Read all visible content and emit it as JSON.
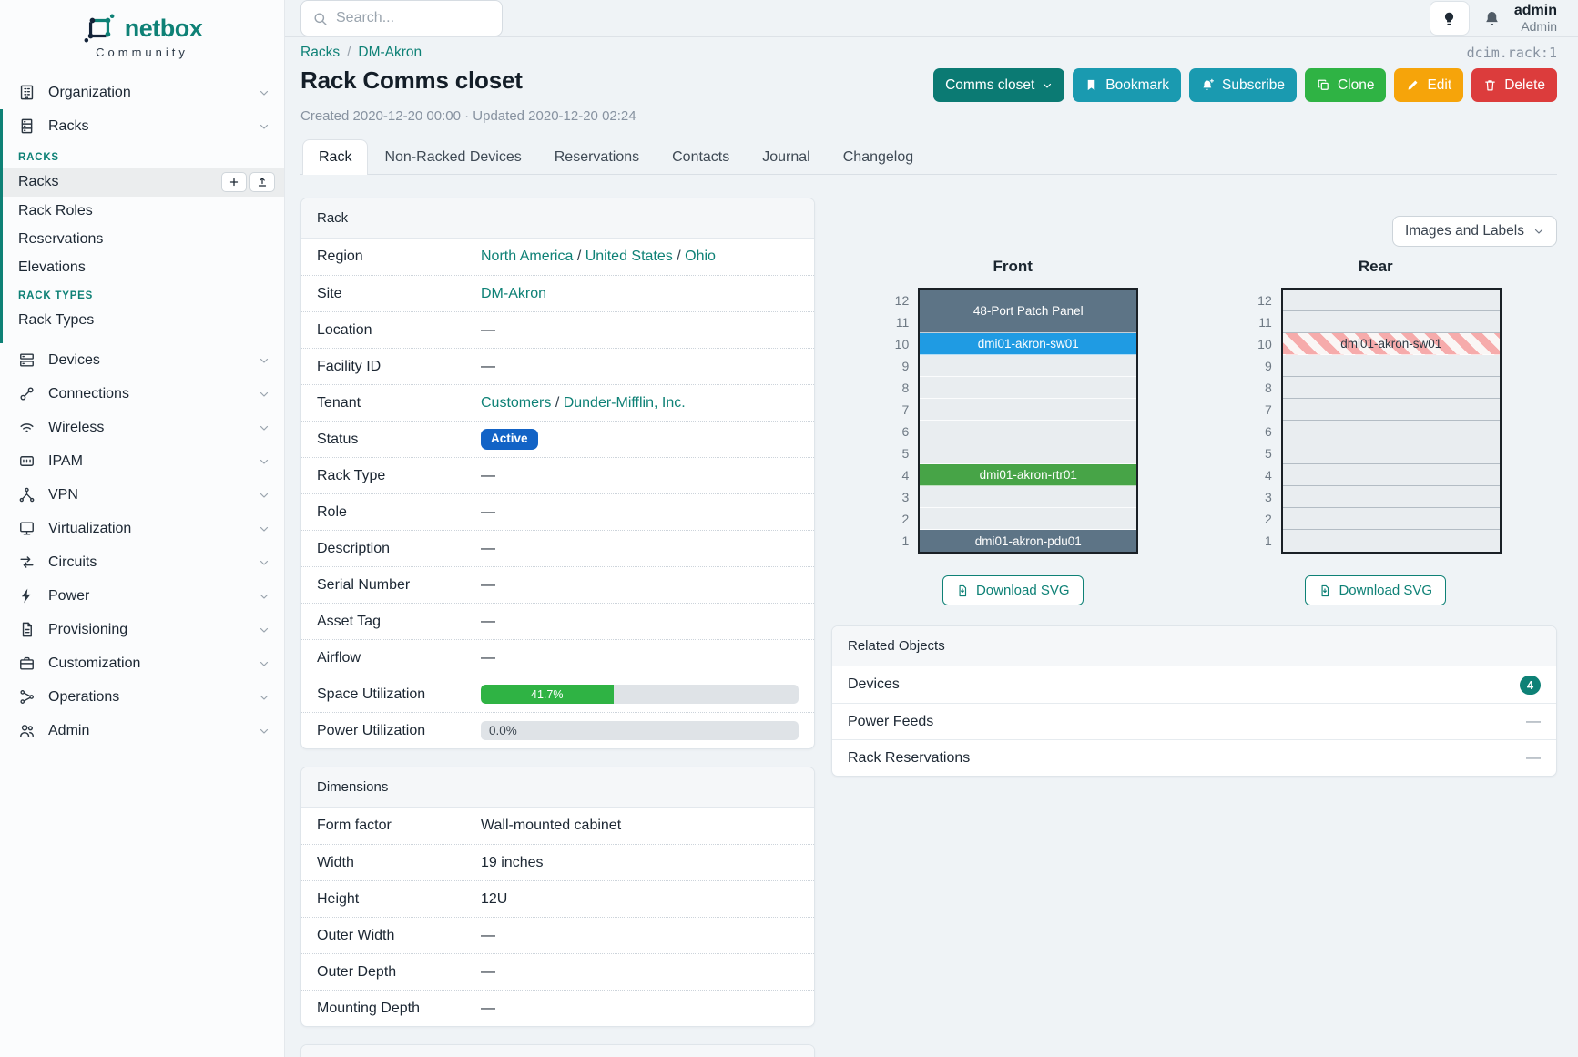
{
  "brand": {
    "name": "netbox",
    "subtitle": "Community"
  },
  "topbar": {
    "search_placeholder": "Search...",
    "user_name": "admin",
    "user_role": "Admin"
  },
  "object_id": "dcim.rack:1",
  "breadcrumb": [
    "Racks",
    "DM-Akron"
  ],
  "page": {
    "title": "Rack Comms closet",
    "meta": "Created 2020-12-20 00:00 · Updated 2020-12-20 02:24"
  },
  "actions": {
    "name_dropdown": "Comms closet",
    "bookmark": "Bookmark",
    "subscribe": "Subscribe",
    "clone": "Clone",
    "edit": "Edit",
    "delete": "Delete"
  },
  "tabs": [
    "Rack",
    "Non-Racked Devices",
    "Reservations",
    "Contacts",
    "Journal",
    "Changelog"
  ],
  "sidebar": {
    "organization": "Organization",
    "racks": "Racks",
    "racks_sections": {
      "header_racks": "RACKS",
      "link_racks": "Racks",
      "link_rack_roles": "Rack Roles",
      "link_reservations": "Reservations",
      "link_elevations": "Elevations",
      "header_rack_types": "RACK TYPES",
      "link_rack_types": "Rack Types"
    },
    "items": [
      "Devices",
      "Connections",
      "Wireless",
      "IPAM",
      "VPN",
      "Virtualization",
      "Circuits",
      "Power",
      "Provisioning",
      "Customization",
      "Operations",
      "Admin"
    ]
  },
  "rack_panel": {
    "title": "Rack",
    "region": {
      "label": "Region",
      "links": [
        "North America",
        "United States",
        "Ohio"
      ]
    },
    "site": {
      "label": "Site",
      "link": "DM-Akron"
    },
    "location": {
      "label": "Location",
      "value": "—"
    },
    "facility_id": {
      "label": "Facility ID",
      "value": "—"
    },
    "tenant": {
      "label": "Tenant",
      "links": [
        "Customers",
        "Dunder-Mifflin, Inc."
      ]
    },
    "status": {
      "label": "Status",
      "badge": "Active",
      "badge_color": "#1263c6"
    },
    "rack_type": {
      "label": "Rack Type",
      "value": "—"
    },
    "role": {
      "label": "Role",
      "value": "—"
    },
    "description": {
      "label": "Description",
      "value": "—"
    },
    "serial_number": {
      "label": "Serial Number",
      "value": "—"
    },
    "asset_tag": {
      "label": "Asset Tag",
      "value": "—"
    },
    "airflow": {
      "label": "Airflow",
      "value": "—"
    },
    "space_utilization": {
      "label": "Space Utilization",
      "percent": 41.7,
      "text": "41.7%",
      "bar_color": "#2fb344"
    },
    "power_utilization": {
      "label": "Power Utilization",
      "percent": 0,
      "text": "0.0%"
    }
  },
  "dimensions_panel": {
    "title": "Dimensions",
    "rows": [
      {
        "label": "Form factor",
        "value": "Wall-mounted cabinet"
      },
      {
        "label": "Width",
        "value": "19 inches"
      },
      {
        "label": "Height",
        "value": "12U"
      },
      {
        "label": "Outer Width",
        "value": "—"
      },
      {
        "label": "Outer Depth",
        "value": "—"
      },
      {
        "label": "Mounting Depth",
        "value": "—"
      }
    ]
  },
  "elevations": {
    "view_selector": "Images and Labels",
    "download_label": "Download SVG",
    "front": {
      "title": "Front",
      "u_height": 12,
      "devices": [
        {
          "name": "48-Port Patch Panel",
          "u_start": 11,
          "u_span": 2,
          "color": "#5d7486",
          "text_color": "#ffffff"
        },
        {
          "name": "dmi01-akron-sw01",
          "u_start": 10,
          "u_span": 1,
          "color": "#1f9be3",
          "text_color": "#ffffff"
        },
        {
          "name": "dmi01-akron-rtr01",
          "u_start": 4,
          "u_span": 1,
          "color": "#47a447",
          "text_color": "#ffffff"
        },
        {
          "name": "dmi01-akron-pdu01",
          "u_start": 1,
          "u_span": 1,
          "color": "#5d7486",
          "text_color": "#ffffff"
        }
      ]
    },
    "rear": {
      "title": "Rear",
      "u_height": 12,
      "devices": [
        {
          "name": "dmi01-akron-sw01",
          "u_start": 10,
          "u_span": 1,
          "striped": true,
          "text_color": "#2f3a44"
        }
      ]
    }
  },
  "related_objects": {
    "title": "Related Objects",
    "rows": [
      {
        "label": "Devices",
        "count": "4"
      },
      {
        "label": "Power Feeds",
        "count": "—"
      },
      {
        "label": "Rack Reservations",
        "count": "—"
      }
    ]
  },
  "colors": {
    "brand_teal": "#0e8176",
    "status_blue": "#1263c6",
    "utilization_green": "#2fb344"
  }
}
